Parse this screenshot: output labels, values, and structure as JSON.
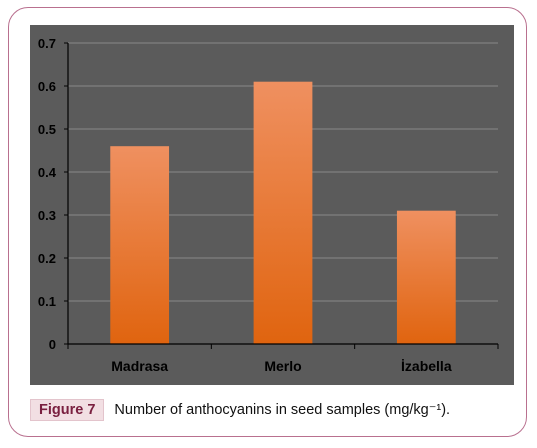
{
  "caption": {
    "label": "Figure 7",
    "text": "Number of anthocyanins in seed samples (mg/kg⁻¹)."
  },
  "colors": {
    "frame": "#b9708f",
    "background": "#5b5b5b",
    "gridline": "#8a8a8a",
    "bar_top": "#ef9060",
    "bar_bottom": "#e0640f",
    "text": "#000000"
  },
  "chart_data": {
    "type": "bar",
    "categories": [
      "Madrasa",
      "Merlo",
      "İzabella"
    ],
    "values": [
      0.46,
      0.61,
      0.31
    ],
    "title": "",
    "xlabel": "",
    "ylabel": "",
    "ylim": [
      0,
      0.7
    ],
    "yticks": [
      "0",
      "0.1",
      "0.2",
      "0.3",
      "0.4",
      "0.5",
      "0.6",
      "0.7"
    ],
    "grid": true,
    "legend": "none"
  }
}
